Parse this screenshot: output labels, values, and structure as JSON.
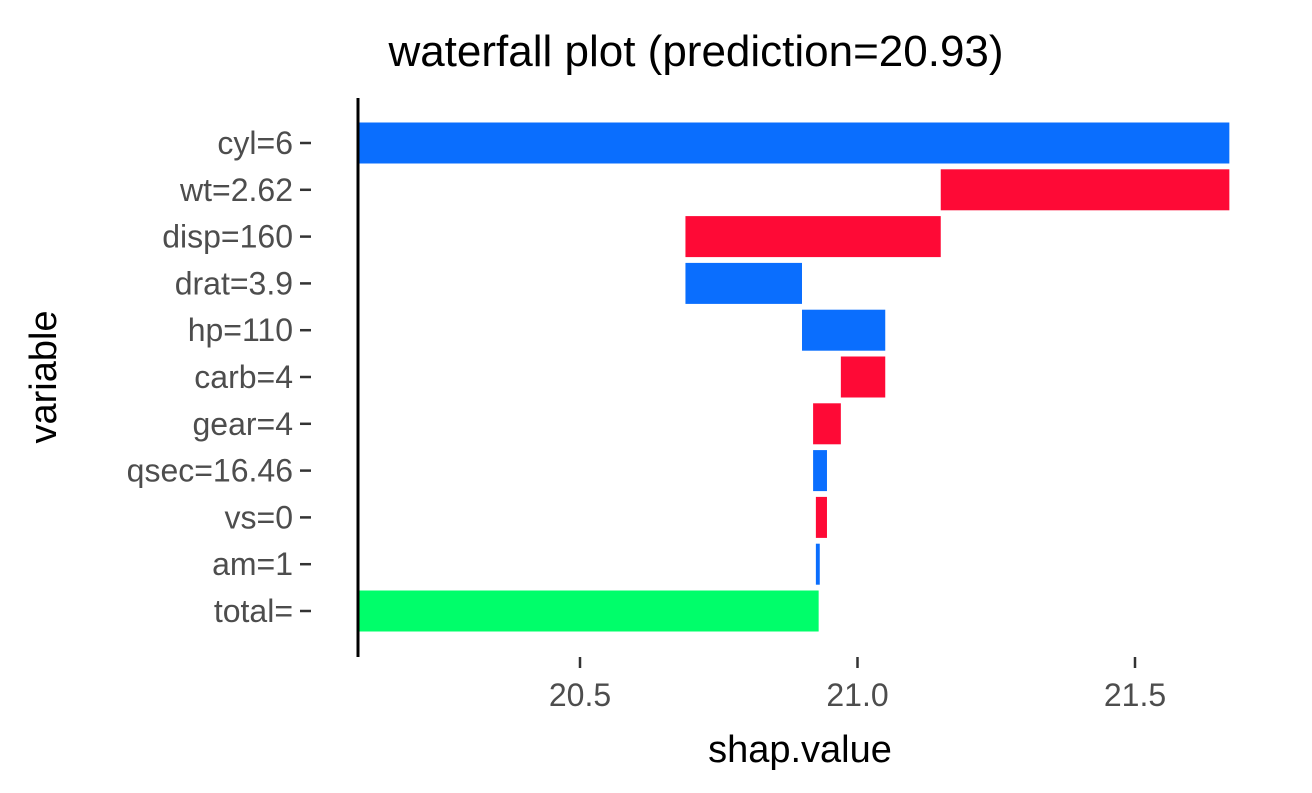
{
  "chart_data": {
    "type": "bar",
    "subtype": "waterfall",
    "orientation": "horizontal",
    "title": "waterfall plot (prediction=20.93)",
    "xlabel": "shap.value",
    "ylabel": "variable",
    "xlim": [
      20.1,
      21.7
    ],
    "xticks": [
      20.5,
      21.0,
      21.5
    ],
    "xtick_labels": [
      "20.5",
      "21.0",
      "21.5"
    ],
    "grid": false,
    "legend": "none",
    "colors": {
      "positive": "#0A6EFE",
      "negative": "#FE0A36",
      "total": "#00FE6A"
    },
    "bars": [
      {
        "label": "cyl=6",
        "start": 20.1,
        "end": 21.67,
        "kind": "positive"
      },
      {
        "label": "wt=2.62",
        "start": 21.15,
        "end": 21.67,
        "kind": "negative"
      },
      {
        "label": "disp=160",
        "start": 20.69,
        "end": 21.15,
        "kind": "negative"
      },
      {
        "label": "drat=3.9",
        "start": 20.69,
        "end": 20.9,
        "kind": "positive"
      },
      {
        "label": "hp=110",
        "start": 20.9,
        "end": 21.05,
        "kind": "positive"
      },
      {
        "label": "carb=4",
        "start": 20.97,
        "end": 21.05,
        "kind": "negative"
      },
      {
        "label": "gear=4",
        "start": 20.92,
        "end": 20.97,
        "kind": "negative"
      },
      {
        "label": "qsec=16.46",
        "start": 20.92,
        "end": 20.945,
        "kind": "positive"
      },
      {
        "label": "vs=0",
        "start": 20.925,
        "end": 20.945,
        "kind": "negative"
      },
      {
        "label": "am=1",
        "start": 20.925,
        "end": 20.932,
        "kind": "positive"
      },
      {
        "label": "total=",
        "start": 20.1,
        "end": 20.93,
        "kind": "total"
      }
    ]
  }
}
